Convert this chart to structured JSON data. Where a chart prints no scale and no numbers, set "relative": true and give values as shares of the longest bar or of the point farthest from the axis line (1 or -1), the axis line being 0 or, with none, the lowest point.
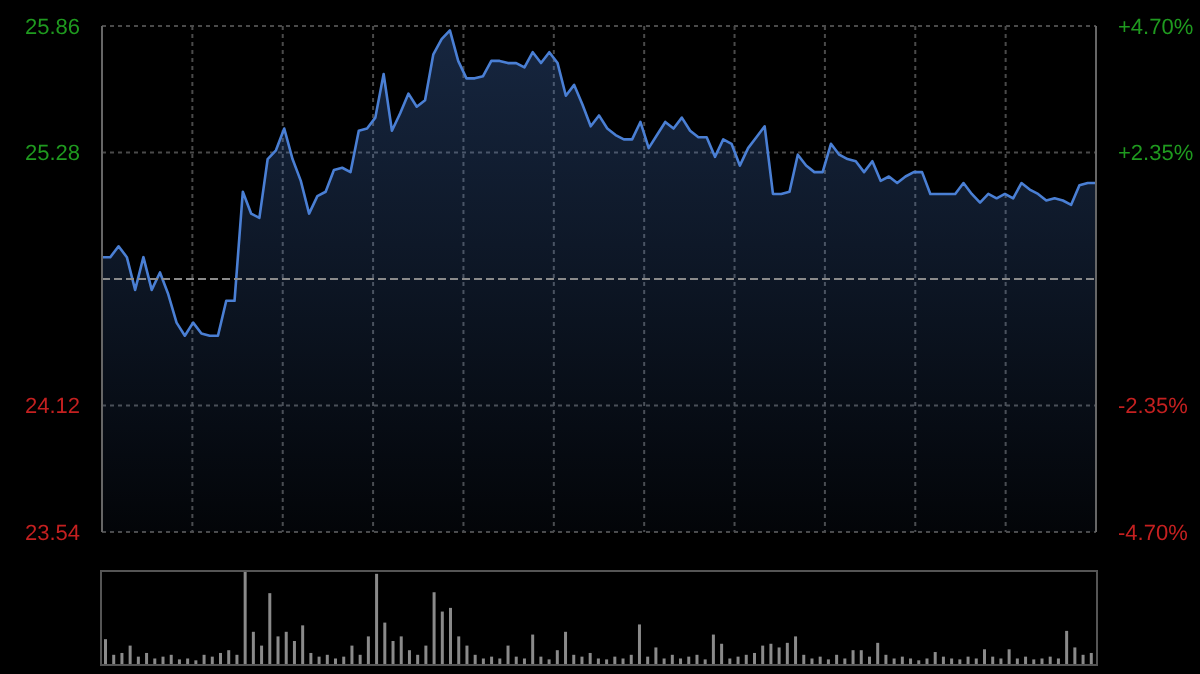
{
  "chart_data": [
    {
      "type": "area",
      "categories": [
        null,
        null,
        null,
        null,
        null,
        null,
        null,
        null,
        null,
        null,
        null,
        null,
        null,
        null,
        null,
        null,
        null,
        null,
        null,
        null,
        null,
        null,
        null,
        null,
        null,
        null,
        null,
        null,
        null,
        null,
        null,
        null,
        null,
        null,
        null,
        null,
        null,
        null,
        null,
        null,
        null,
        null,
        null,
        null,
        null,
        null,
        null,
        null,
        null,
        null,
        null,
        null,
        null,
        null,
        null,
        null,
        null,
        null,
        null,
        null,
        null,
        null,
        null,
        null,
        null,
        null,
        null,
        null,
        null,
        null,
        null,
        null,
        null,
        null,
        null,
        null,
        null,
        null,
        null,
        null,
        null,
        null,
        null,
        null,
        null,
        null,
        null,
        null,
        null,
        null,
        null,
        null,
        null,
        null,
        null,
        null,
        null,
        null,
        null,
        null,
        null,
        null,
        null,
        null,
        null,
        null,
        null,
        null,
        null,
        null,
        null,
        null,
        null,
        null,
        null,
        null,
        null,
        null,
        null,
        null,
        null
      ],
      "series": [
        {
          "color": "#4a7fd4",
          "values": [
            24.8,
            24.8,
            24.85,
            24.8,
            24.65,
            24.8,
            24.65,
            24.73,
            24.63,
            24.5,
            24.44,
            24.5,
            24.45,
            24.44,
            24.44,
            24.6,
            24.6,
            25.1,
            25.0,
            24.98,
            25.25,
            25.29,
            25.39,
            25.25,
            25.15,
            25.0,
            25.08,
            25.1,
            25.2,
            25.21,
            25.19,
            25.38,
            25.39,
            25.44,
            25.64,
            25.38,
            25.46,
            25.55,
            25.49,
            25.52,
            25.73,
            25.8,
            25.84,
            25.7,
            25.62,
            25.62,
            25.63,
            25.7,
            25.7,
            25.69,
            25.69,
            25.67,
            25.74,
            25.69,
            25.74,
            25.69,
            25.54,
            25.59,
            25.5,
            25.4,
            25.45,
            25.39,
            25.36,
            25.34,
            25.34,
            25.42,
            25.3,
            25.36,
            25.42,
            25.39,
            25.44,
            25.38,
            25.35,
            25.35,
            25.26,
            25.34,
            25.32,
            25.22,
            25.3,
            25.35,
            25.4,
            25.09,
            25.09,
            25.1,
            25.27,
            25.22,
            25.19,
            25.19,
            25.32,
            25.27,
            25.25,
            25.24,
            25.19,
            25.24,
            25.15,
            25.17,
            25.14,
            25.17,
            25.19,
            25.19,
            25.09,
            25.09,
            25.09,
            25.09,
            25.14,
            25.09,
            25.05,
            25.09,
            25.07,
            25.09,
            25.07,
            25.14,
            25.11,
            25.09,
            25.06,
            25.07,
            25.06,
            25.04,
            25.13,
            25.14,
            25.14
          ]
        }
      ],
      "ylim": [
        23.54,
        25.86
      ],
      "yticks": [
        23.54,
        24.12,
        25.28,
        25.86
      ],
      "y2lim": [
        -4.7,
        4.7
      ],
      "y2ticks": [
        {
          "value": -4.7,
          "label": "-4.70%"
        },
        {
          "value": -2.35,
          "label": "-2.35%"
        },
        {
          "value": 2.35,
          "label": "+2.35%"
        },
        {
          "value": 4.7,
          "label": "+4.70%"
        }
      ],
      "ref_lines": [
        {
          "axis": "y",
          "value": 24.7
        }
      ],
      "grid": true,
      "tick_labels": "y"
    },
    {
      "type": "bar",
      "relative": true,
      "categories": [
        null,
        null,
        null,
        null,
        null,
        null,
        null,
        null,
        null,
        null,
        null,
        null,
        null,
        null,
        null,
        null,
        null,
        null,
        null,
        null,
        null,
        null,
        null,
        null,
        null,
        null,
        null,
        null,
        null,
        null,
        null,
        null,
        null,
        null,
        null,
        null,
        null,
        null,
        null,
        null,
        null,
        null,
        null,
        null,
        null,
        null,
        null,
        null,
        null,
        null,
        null,
        null,
        null,
        null,
        null,
        null,
        null,
        null,
        null,
        null,
        null,
        null,
        null,
        null,
        null,
        null,
        null,
        null,
        null,
        null,
        null,
        null,
        null,
        null,
        null,
        null,
        null,
        null,
        null,
        null,
        null,
        null,
        null,
        null,
        null,
        null,
        null,
        null,
        null,
        null,
        null,
        null,
        null,
        null,
        null,
        null,
        null,
        null,
        null,
        null,
        null,
        null,
        null,
        null,
        null,
        null,
        null,
        null,
        null,
        null,
        null,
        null,
        null,
        null,
        null,
        null,
        null,
        null,
        null,
        null,
        null
      ],
      "series": [
        {
          "color": "#8a8a8a",
          "values": [
            0.27,
            0.1,
            0.12,
            0.2,
            0.08,
            0.12,
            0.06,
            0.08,
            0.1,
            0.05,
            0.06,
            0.04,
            0.1,
            0.08,
            0.12,
            0.15,
            0.1,
            1.0,
            0.35,
            0.2,
            0.77,
            0.3,
            0.35,
            0.25,
            0.42,
            0.12,
            0.08,
            0.1,
            0.06,
            0.08,
            0.2,
            0.1,
            0.3,
            0.98,
            0.45,
            0.25,
            0.3,
            0.15,
            0.1,
            0.2,
            0.78,
            0.57,
            0.61,
            0.3,
            0.2,
            0.1,
            0.06,
            0.08,
            0.06,
            0.2,
            0.08,
            0.06,
            0.32,
            0.08,
            0.05,
            0.15,
            0.35,
            0.1,
            0.08,
            0.12,
            0.06,
            0.05,
            0.08,
            0.06,
            0.1,
            0.43,
            0.08,
            0.18,
            0.06,
            0.1,
            0.06,
            0.08,
            0.1,
            0.05,
            0.32,
            0.22,
            0.06,
            0.08,
            0.1,
            0.12,
            0.2,
            0.22,
            0.18,
            0.23,
            0.3,
            0.1,
            0.06,
            0.08,
            0.05,
            0.1,
            0.06,
            0.15,
            0.15,
            0.08,
            0.23,
            0.1,
            0.06,
            0.08,
            0.06,
            0.04,
            0.06,
            0.13,
            0.08,
            0.06,
            0.05,
            0.08,
            0.06,
            0.16,
            0.08,
            0.06,
            0.16,
            0.06,
            0.08,
            0.05,
            0.06,
            0.08,
            0.06,
            0.36,
            0.18,
            0.1,
            0.12
          ]
        }
      ],
      "tick_labels": false
    }
  ]
}
